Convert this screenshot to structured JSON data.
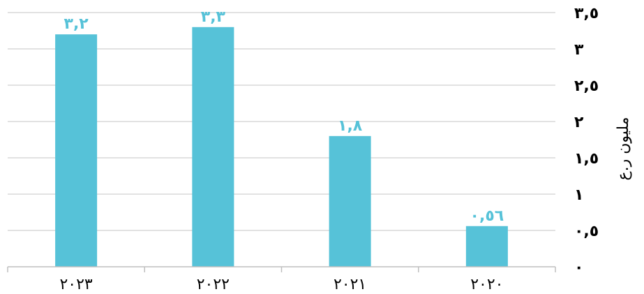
{
  "chart_data": {
    "type": "bar",
    "categories": [
      "٢٠٢٣",
      "٢٠٢٢",
      "٢٠٢١",
      "٢٠٢٠"
    ],
    "values": [
      3.2,
      3.3,
      1.8,
      0.56
    ],
    "value_labels": [
      "٣,٢",
      "٣,٣",
      "١,٨",
      "٠,٥٦"
    ],
    "ylabel": "مليون ر.ع",
    "ylim": [
      0,
      3.5
    ],
    "yticks": [
      0,
      0.5,
      1,
      1.5,
      2,
      2.5,
      3,
      3.5
    ],
    "ytick_labels": [
      "٠",
      "٠,٥",
      "١",
      "١,٥",
      "٢",
      "٢,٥",
      "٣",
      "٣,٥"
    ],
    "grid": true,
    "legend": "none",
    "y_axis_side": "right",
    "colors": {
      "bar": "#56C2D8",
      "data_label": "#56C2D8",
      "gridline": "#D9D9D9",
      "axis": "#BFBFBF",
      "text": "#000000"
    }
  }
}
